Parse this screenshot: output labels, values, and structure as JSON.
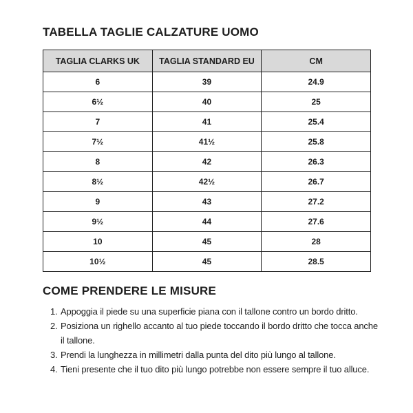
{
  "size_table": {
    "title": "TABELLA TAGLIE CALZATURE UOMO",
    "columns": [
      "TAGLIA CLARKS UK",
      "TAGLIA STANDARD EU",
      "CM"
    ],
    "rows": [
      [
        "6",
        "39",
        "24.9"
      ],
      [
        "6½",
        "40",
        "25"
      ],
      [
        "7",
        "41",
        "25.4"
      ],
      [
        "7½",
        "41½",
        "25.8"
      ],
      [
        "8",
        "42",
        "26.3"
      ],
      [
        "8½",
        "42½",
        "26.7"
      ],
      [
        "9",
        "43",
        "27.2"
      ],
      [
        "9½",
        "44",
        "27.6"
      ],
      [
        "10",
        "45",
        "28"
      ],
      [
        "10½",
        "45",
        "28.5"
      ]
    ]
  },
  "instructions": {
    "title": "COME PRENDERE LE MISURE",
    "steps": [
      "Appoggia il piede su una superficie piana con il tallone contro un bordo dritto.",
      "Posiziona un righello accanto al tuo piede toccando il bordo dritto che tocca anche il tallone.",
      "Prendi la lunghezza in millimetri dalla punta del dito più lungo al tallone.",
      "Tieni presente che il tuo dito più lungo potrebbe non essere sempre il tuo alluce."
    ]
  },
  "colors": {
    "background": "#ffffff",
    "header_bg": "#d9d9d9",
    "border": "#1d1d1d",
    "text": "#1d1d1d"
  }
}
